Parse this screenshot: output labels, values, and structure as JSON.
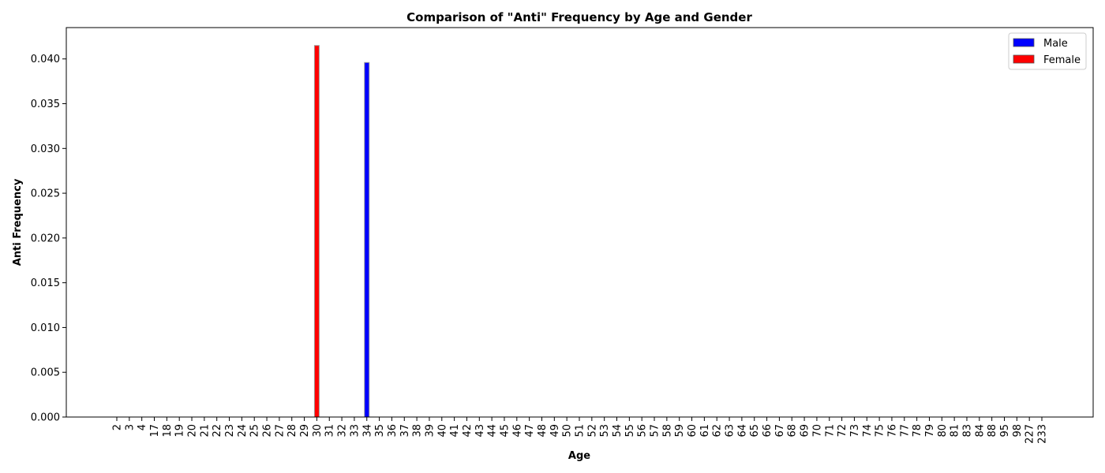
{
  "chart_data": {
    "type": "bar",
    "title": "Comparison of \"Anti\" Frequency by Age and Gender",
    "xlabel": "Age",
    "ylabel": "Anti Frequency",
    "ylim": [
      0,
      0.0435
    ],
    "yticks": [
      "0.000",
      "0.005",
      "0.010",
      "0.015",
      "0.020",
      "0.025",
      "0.030",
      "0.035",
      "0.040"
    ],
    "grid": false,
    "legend_position": "top-right",
    "categories": [
      "2",
      "3",
      "4",
      "17",
      "18",
      "19",
      "20",
      "21",
      "22",
      "23",
      "24",
      "25",
      "26",
      "27",
      "28",
      "29",
      "30",
      "31",
      "32",
      "33",
      "34",
      "35",
      "36",
      "37",
      "38",
      "39",
      "40",
      "41",
      "42",
      "43",
      "44",
      "45",
      "46",
      "47",
      "48",
      "49",
      "50",
      "51",
      "52",
      "53",
      "54",
      "55",
      "56",
      "57",
      "58",
      "59",
      "60",
      "61",
      "62",
      "63",
      "64",
      "65",
      "66",
      "67",
      "68",
      "69",
      "70",
      "71",
      "72",
      "73",
      "74",
      "75",
      "76",
      "77",
      "78",
      "79",
      "80",
      "81",
      "83",
      "84",
      "88",
      "95",
      "98",
      "227",
      "233"
    ],
    "series": [
      {
        "name": "Male",
        "color": "#0000ff",
        "values": [
          0,
          0,
          0,
          0,
          0,
          0,
          0,
          0,
          0,
          0,
          0,
          0,
          0,
          0,
          0,
          0,
          0,
          0,
          0,
          0,
          0.0396,
          0,
          0,
          0,
          0,
          0,
          0,
          0,
          0,
          0,
          0,
          0,
          0,
          0,
          0,
          0,
          0,
          0,
          0,
          0,
          0,
          0,
          0,
          0,
          0,
          0,
          0,
          0,
          0,
          0,
          0,
          0,
          0,
          0,
          0,
          0,
          0,
          0,
          0,
          0,
          0,
          0,
          0,
          0,
          0,
          0,
          0,
          0,
          0,
          0,
          0,
          0,
          0,
          0,
          0
        ]
      },
      {
        "name": "Female",
        "color": "#ff0000",
        "values": [
          0,
          0,
          0,
          0,
          0,
          0,
          0,
          0,
          0,
          0,
          0,
          0,
          0,
          0,
          0,
          0,
          0.0415,
          0,
          0,
          0,
          0,
          0,
          0,
          0,
          0,
          0,
          0,
          0,
          0,
          0,
          0,
          0,
          0,
          0,
          0,
          0,
          0,
          0,
          0,
          0,
          0,
          0,
          0,
          0,
          0,
          0,
          0,
          0,
          0,
          0,
          0,
          0,
          0,
          0,
          0,
          0,
          0,
          0,
          0,
          0,
          0,
          0,
          0,
          0,
          0,
          0,
          0,
          0,
          0,
          0,
          0,
          0,
          0,
          0,
          0
        ]
      }
    ]
  }
}
